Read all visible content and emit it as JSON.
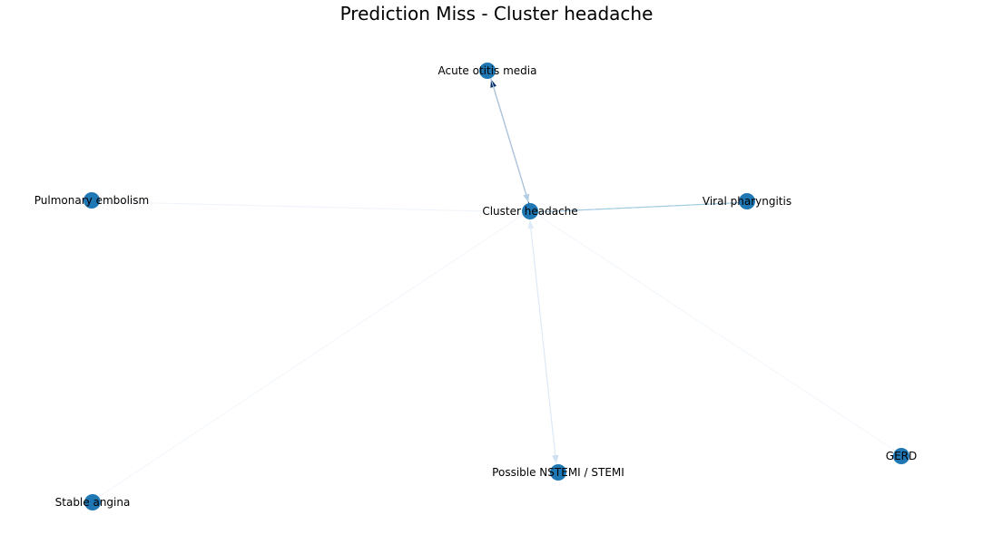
{
  "title": "Prediction Miss - Cluster headache",
  "colors": {
    "node_fill": "#1f77b4",
    "label": "#000000",
    "background": "#ffffff"
  },
  "nodes": [
    {
      "id": "acute_otitis",
      "label": "Acute otitis media"
    },
    {
      "id": "pulmonary_embolism",
      "label": "Pulmonary embolism"
    },
    {
      "id": "cluster_headache",
      "label": "Cluster headache"
    },
    {
      "id": "viral_pharyngitis",
      "label": "Viral pharyngitis"
    },
    {
      "id": "gerd",
      "label": "GERD"
    },
    {
      "id": "nstemi",
      "label": "Possible NSTEMI / STEMI"
    },
    {
      "id": "stable_angina",
      "label": "Stable angina"
    }
  ],
  "edges": [
    {
      "from": "cluster_headache",
      "to": "acute_otitis",
      "color": "#08306b",
      "arrow": true
    },
    {
      "from": "acute_otitis",
      "to": "cluster_headache",
      "color": "#b3cde3",
      "arrow": true
    },
    {
      "from": "cluster_headache",
      "to": "viral_pharyngitis",
      "color": "#9ecae1",
      "arrow": false
    },
    {
      "from": "viral_pharyngitis",
      "to": "cluster_headache",
      "color": "#9ecae1",
      "arrow": false
    },
    {
      "from": "cluster_headache",
      "to": "nstemi",
      "color": "#c6dbef",
      "arrow": true
    },
    {
      "from": "nstemi",
      "to": "cluster_headache",
      "color": "#deebf7",
      "arrow": true
    },
    {
      "from": "pulmonary_embolism",
      "to": "cluster_headache",
      "color": "#eef4fb",
      "arrow": false
    },
    {
      "from": "stable_angina",
      "to": "cluster_headache",
      "color": "#f1f6fc",
      "arrow": false
    },
    {
      "from": "gerd",
      "to": "cluster_headache",
      "color": "#f1f6fc",
      "arrow": false
    }
  ]
}
